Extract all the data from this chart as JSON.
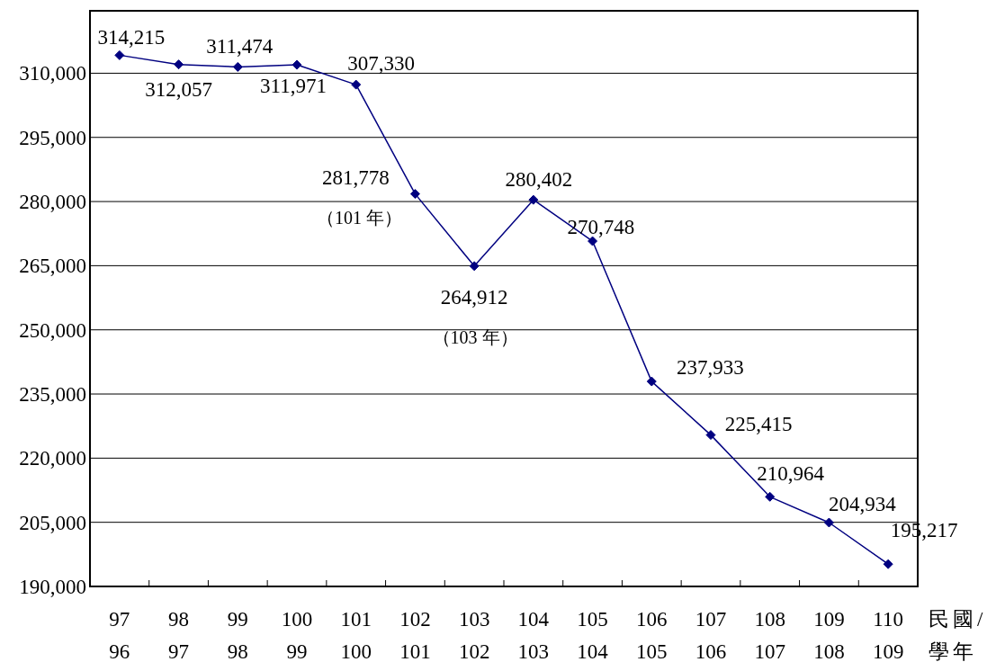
{
  "chart_data": {
    "type": "line",
    "categories": [
      "97\n96",
      "98\n97",
      "99\n98",
      "100\n99",
      "101\n100",
      "102\n101",
      "103\n102",
      "104\n103",
      "105\n104",
      "106\n105",
      "107\n106",
      "108\n107",
      "109\n108",
      "110\n109"
    ],
    "xlabel": "民國/\n學年",
    "series": [
      {
        "color": "#000080",
        "values": [
          314215,
          312057,
          311474,
          311971,
          307330,
          281778,
          264912,
          280402,
          270748,
          237933,
          225415,
          210964,
          204934,
          195217
        ],
        "value_labels": [
          "314,215",
          "312,057",
          "311,474",
          "311,971",
          "307,330",
          "281,778",
          "264,912",
          "280,402",
          "270,748",
          "237,933",
          "225,415",
          "210,964",
          "204,934",
          "195,217"
        ]
      }
    ],
    "marker": "diamond",
    "annotations": [
      {
        "text": "（101 年）",
        "x": "102\n101",
        "y": 281778
      },
      "（103 年）"
    ],
    "ylim": [
      190000,
      324600
    ],
    "yticks": [
      {
        "value": 190000,
        "label": "190,000"
      },
      {
        "value": 205000,
        "label": "205,000"
      },
      {
        "value": 220000,
        "label": "220,000"
      },
      {
        "value": 235000,
        "label": "235,000"
      },
      {
        "value": 250000,
        "label": "250,000"
      },
      {
        "value": 265000,
        "label": "265,000"
      },
      {
        "value": 280000,
        "label": "280,000"
      },
      {
        "value": 295000,
        "label": "295,000"
      },
      {
        "value": 310000,
        "label": "310,000"
      }
    ],
    "grid": "y"
  }
}
